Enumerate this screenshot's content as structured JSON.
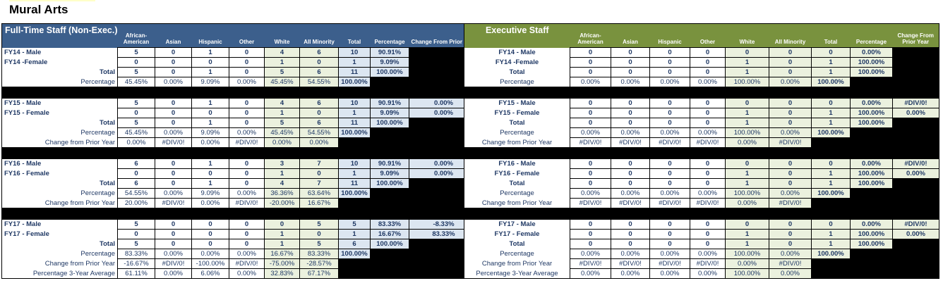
{
  "page_title": "Mural Arts",
  "colors": {
    "header_blue": "#3c5f8c",
    "header_green": "#79923e",
    "light_olive_cell": "#ebf1de",
    "light_blue_cell": "#dce6f1",
    "blank_cell_fill": "#000000",
    "value_text": "#1f3864"
  },
  "columns": [
    "African-American",
    "Asian",
    "Hispanic",
    "Other",
    "White",
    "All Minority",
    "Total",
    "Percentage",
    "Change From Prior Year"
  ],
  "tables": [
    {
      "title": "Full-Time Staff (Non-Exec.)",
      "theme": "blue",
      "sections": [
        {
          "rows": [
            {
              "label": "FY14 - Male",
              "type": "data",
              "cells": [
                "5",
                "0",
                "1",
                "0",
                "4",
                "6",
                "10",
                "90.91%",
                null
              ]
            },
            {
              "label": "FY14  -Female",
              "type": "data",
              "cells": [
                "0",
                "0",
                "0",
                "0",
                "1",
                "0",
                "1",
                "9.09%",
                null
              ]
            },
            {
              "label": "Total",
              "type": "data",
              "cells": [
                "5",
                "0",
                "1",
                "0",
                "5",
                "6",
                "11",
                "100.00%",
                null
              ]
            },
            {
              "label": "Percentage",
              "type": "calc",
              "cells": [
                "45.45%",
                "0.00%",
                "9.09%",
                "0.00%",
                "45.45%",
                "54.55%",
                "100.00%",
                null,
                null
              ]
            }
          ]
        },
        {
          "rows": [
            {
              "label": "FY15 - Male",
              "type": "data",
              "cells": [
                "5",
                "0",
                "1",
                "0",
                "4",
                "6",
                "10",
                "90.91%",
                "0.00%"
              ]
            },
            {
              "label": "FY15 - Female",
              "type": "data",
              "cells": [
                "0",
                "0",
                "0",
                "0",
                "1",
                "0",
                "1",
                "9.09%",
                "0.00%"
              ]
            },
            {
              "label": "Total",
              "type": "data",
              "cells": [
                "5",
                "0",
                "1",
                "0",
                "5",
                "6",
                "11",
                "100.00%",
                null
              ]
            },
            {
              "label": "Percentage",
              "type": "calc",
              "cells": [
                "45.45%",
                "0.00%",
                "9.09%",
                "0.00%",
                "45.45%",
                "54.55%",
                "100.00%",
                null,
                null
              ]
            },
            {
              "label": "Change from Prior Year",
              "type": "calc",
              "cells": [
                "0.00%",
                "#DIV/0!",
                "0.00%",
                "#DIV/0!",
                "0.00%",
                "0.00%",
                null,
                null,
                null
              ]
            }
          ]
        },
        {
          "rows": [
            {
              "label": "FY16 - Male",
              "type": "data",
              "cells": [
                "6",
                "0",
                "1",
                "0",
                "3",
                "7",
                "10",
                "90.91%",
                "0.00%"
              ]
            },
            {
              "label": "FY16 - Female",
              "type": "data",
              "cells": [
                "0",
                "0",
                "0",
                "0",
                "1",
                "0",
                "1",
                "9.09%",
                "0.00%"
              ]
            },
            {
              "label": "Total",
              "type": "data",
              "cells": [
                "6",
                "0",
                "1",
                "0",
                "4",
                "7",
                "11",
                "100.00%",
                null
              ]
            },
            {
              "label": "Percentage",
              "type": "calc",
              "cells": [
                "54.55%",
                "0.00%",
                "9.09%",
                "0.00%",
                "36.36%",
                "63.64%",
                "100.00%",
                null,
                null
              ]
            },
            {
              "label": "Change from Prior Year",
              "type": "calc",
              "cells": [
                "20.00%",
                "#DIV/0!",
                "0.00%",
                "#DIV/0!",
                "-20.00%",
                "16.67%",
                null,
                null,
                null
              ]
            }
          ]
        },
        {
          "rows": [
            {
              "label": "FY17 - Male",
              "type": "data",
              "cells": [
                "5",
                "0",
                "0",
                "0",
                "0",
                "5",
                "5",
                "83.33%",
                "-8.33%"
              ]
            },
            {
              "label": "FY17 - Female",
              "type": "data",
              "cells": [
                "0",
                "0",
                "0",
                "0",
                "1",
                "0",
                "1",
                "16.67%",
                "83.33%"
              ]
            },
            {
              "label": "Total",
              "type": "data",
              "cells": [
                "5",
                "0",
                "0",
                "0",
                "1",
                "5",
                "6",
                "100.00%",
                null
              ]
            },
            {
              "label": "Percentage",
              "type": "calc",
              "cells": [
                "83.33%",
                "0.00%",
                "0.00%",
                "0.00%",
                "16.67%",
                "83.33%",
                "100.00%",
                null,
                null
              ]
            },
            {
              "label": "Change from Prior Year",
              "type": "calc",
              "cells": [
                "-16.67%",
                "#DIV/0!",
                "-100.00%",
                "#DIV/0!",
                "-75.00%",
                "-28.57%",
                null,
                null,
                null
              ]
            },
            {
              "label": "Percentage 3-Year Average",
              "type": "calc",
              "cells": [
                "61.11%",
                "0.00%",
                "6.06%",
                "0.00%",
                "32.83%",
                "67.17%",
                null,
                null,
                null
              ]
            }
          ]
        }
      ]
    },
    {
      "title": "Executive Staff",
      "theme": "green",
      "sections": [
        {
          "rows": [
            {
              "label": "FY14 - Male",
              "type": "data",
              "cells": [
                "0",
                "0",
                "0",
                "0",
                "0",
                "0",
                "0",
                "0.00%",
                null
              ]
            },
            {
              "label": "FY14  -Female",
              "type": "data",
              "cells": [
                "0",
                "0",
                "0",
                "0",
                "1",
                "0",
                "1",
                "100.00%",
                null
              ]
            },
            {
              "label": "Total",
              "type": "data",
              "cells": [
                "0",
                "0",
                "0",
                "0",
                "1",
                "0",
                "1",
                "100.00%",
                null
              ]
            },
            {
              "label": "Percentage",
              "type": "calc",
              "cells": [
                "0.00%",
                "0.00%",
                "0.00%",
                "0.00%",
                "100.00%",
                "0.00%",
                "100.00%",
                null,
                null
              ]
            }
          ]
        },
        {
          "rows": [
            {
              "label": "FY15 - Male",
              "type": "data",
              "cells": [
                "0",
                "0",
                "0",
                "0",
                "0",
                "0",
                "0",
                "0.00%",
                "#DIV/0!"
              ]
            },
            {
              "label": "FY15 - Female",
              "type": "data",
              "cells": [
                "0",
                "0",
                "0",
                "0",
                "1",
                "0",
                "1",
                "100.00%",
                "0.00%"
              ]
            },
            {
              "label": "Total",
              "type": "data",
              "cells": [
                "0",
                "0",
                "0",
                "0",
                "1",
                "0",
                "1",
                "100.00%",
                null
              ]
            },
            {
              "label": "Percentage",
              "type": "calc",
              "cells": [
                "0.00%",
                "0.00%",
                "0.00%",
                "0.00%",
                "100.00%",
                "0.00%",
                "100.00%",
                null,
                null
              ]
            },
            {
              "label": "Change from Prior Year",
              "type": "calc",
              "cells": [
                "#DIV/0!",
                "#DIV/0!",
                "#DIV/0!",
                "#DIV/0!",
                "0.00%",
                "#DIV/0!",
                null,
                null,
                null
              ]
            }
          ]
        },
        {
          "rows": [
            {
              "label": "FY16 - Male",
              "type": "data",
              "cells": [
                "0",
                "0",
                "0",
                "0",
                "0",
                "0",
                "0",
                "0.00%",
                "#DIV/0!"
              ]
            },
            {
              "label": "FY16 - Female",
              "type": "data",
              "cells": [
                "0",
                "0",
                "0",
                "0",
                "1",
                "0",
                "1",
                "100.00%",
                "0.00%"
              ]
            },
            {
              "label": "Total",
              "type": "data",
              "cells": [
                "0",
                "0",
                "0",
                "0",
                "1",
                "0",
                "1",
                "100.00%",
                null
              ]
            },
            {
              "label": "Percentage",
              "type": "calc",
              "cells": [
                "0.00%",
                "0.00%",
                "0.00%",
                "0.00%",
                "100.00%",
                "0.00%",
                "100.00%",
                null,
                null
              ]
            },
            {
              "label": "Change from Prior Year",
              "type": "calc",
              "cells": [
                "#DIV/0!",
                "#DIV/0!",
                "#DIV/0!",
                "#DIV/0!",
                "0.00%",
                "#DIV/0!",
                null,
                null,
                null
              ]
            }
          ]
        },
        {
          "rows": [
            {
              "label": "FY17 - Male",
              "type": "data",
              "cells": [
                "0",
                "0",
                "0",
                "0",
                "0",
                "0",
                "0",
                "0.00%",
                "#DIV/0!"
              ]
            },
            {
              "label": "FY17 - Female",
              "type": "data",
              "cells": [
                "0",
                "0",
                "0",
                "0",
                "1",
                "0",
                "1",
                "100.00%",
                "0.00%"
              ]
            },
            {
              "label": "Total",
              "type": "data",
              "cells": [
                "0",
                "0",
                "0",
                "0",
                "1",
                "0",
                "1",
                "100.00%",
                null
              ]
            },
            {
              "label": "Percentage",
              "type": "calc",
              "cells": [
                "0.00%",
                "0.00%",
                "0.00%",
                "0.00%",
                "100.00%",
                "0.00%",
                "100.00%",
                null,
                null
              ]
            },
            {
              "label": "Change from Prior Year",
              "type": "calc",
              "cells": [
                "#DIV/0!",
                "#DIV/0!",
                "#DIV/0!",
                "#DIV/0!",
                "0.00%",
                "#DIV/0!",
                null,
                null,
                null
              ]
            },
            {
              "label": "Percentage 3-Year Average",
              "type": "calc",
              "cells": [
                "0.00%",
                "0.00%",
                "0.00%",
                "0.00%",
                "100.00%",
                "0.00%",
                null,
                null,
                null
              ]
            }
          ]
        }
      ]
    }
  ]
}
